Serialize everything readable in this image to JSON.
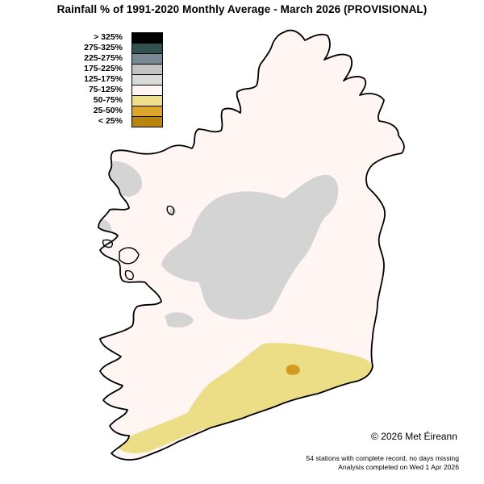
{
  "title": "Rainfall % of  1991-2020  Monthly Average - March 2026  (PROVISIONAL)",
  "legend": [
    {
      "label": "> 325%",
      "color": "#000000"
    },
    {
      "label": "275-325%",
      "color": "#33524f"
    },
    {
      "label": "225-275%",
      "color": "#7a8896"
    },
    {
      "label": "175-225%",
      "color": "#c3c3c3"
    },
    {
      "label": "125-175%",
      "color": "#d9d9d9"
    },
    {
      "label": "75-125%",
      "color": "#fff5f2"
    },
    {
      "label": "50-75%",
      "color": "#f0df8a"
    },
    {
      "label": "25-50%",
      "color": "#dca62a"
    },
    {
      "label": "< 25%",
      "color": "#b8860b"
    }
  ],
  "map_colors": {
    "land": "#fff5f2",
    "wet": "#d4d4d4",
    "dry": "#ecdd87",
    "very_dry": "#d69a1f",
    "coast": "#000000"
  },
  "copyright": "© 2026 Met Éireann",
  "footnote": {
    "stations": "54 stations with complete record, no days missing",
    "analysis": "Analysis completed on Wed 1 Apr 2026"
  }
}
